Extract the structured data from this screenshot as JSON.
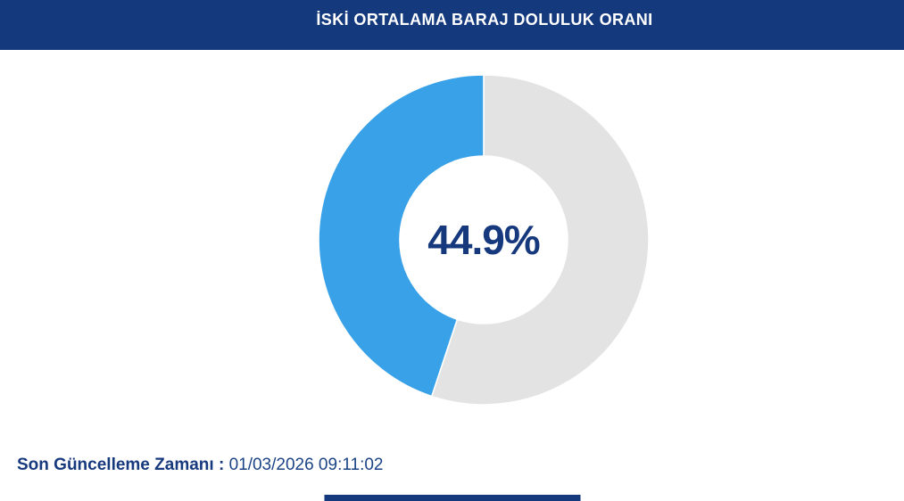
{
  "header": {
    "title": "İSKİ ORTALAMA BARAJ DOLULUK ORANI",
    "background_color": "#14397D",
    "text_color": "#FFFFFF"
  },
  "chart_data": {
    "type": "pie",
    "variant": "donut",
    "title": "İSKİ ORTALAMA BARAJ DOLULUK ORANI",
    "center_label": "44.9%",
    "center_label_color": "#16387D",
    "series": [
      {
        "name": "doluluk-orani",
        "value": 44.9,
        "color": "#38A1E8"
      },
      {
        "name": "bos-kisim",
        "value": 55.1,
        "color": "#E3E3E3"
      }
    ],
    "start_angle": "top",
    "fill_direction": "counterclockwise",
    "separator_color": "#FFFFFF",
    "legend": "none"
  },
  "footer": {
    "last_update_label": "Son Güncelleme Zamanı",
    "separator": " : ",
    "last_update_value": "01/03/2026 09:11:02"
  },
  "accent": {
    "bottom_bar_color": "#14397D"
  }
}
